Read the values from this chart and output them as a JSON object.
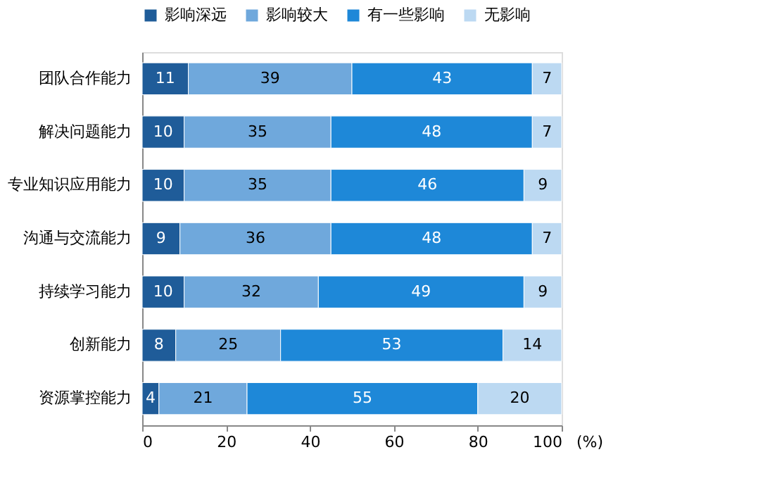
{
  "chart_data": {
    "type": "bar",
    "orientation": "horizontal",
    "stacked": true,
    "data_labels": true,
    "legend": "top",
    "grid": false,
    "xlabel": "(%)",
    "categories": [
      "团队合作能力",
      "解决问题能力",
      "专业知识应用能力",
      "沟通与交流能力",
      "持续学习能力",
      "创新能力",
      "资源掌控能力"
    ],
    "xlim": [
      0,
      100
    ],
    "xticks": [
      0,
      20,
      40,
      60,
      80,
      100
    ],
    "series": [
      {
        "name": "影响深远",
        "color": "#1f5c99",
        "values": [
          11,
          10,
          10,
          9,
          10,
          8,
          4
        ]
      },
      {
        "name": "影响较大",
        "color": "#6fa8dc",
        "values": [
          39,
          35,
          35,
          36,
          32,
          25,
          21
        ]
      },
      {
        "name": "有一些影响",
        "color": "#1e88d8",
        "values": [
          43,
          48,
          46,
          48,
          49,
          53,
          55
        ]
      },
      {
        "name": "无影响",
        "color": "#bcd9f2",
        "values": [
          7,
          7,
          9,
          7,
          9,
          14,
          20
        ]
      }
    ]
  }
}
